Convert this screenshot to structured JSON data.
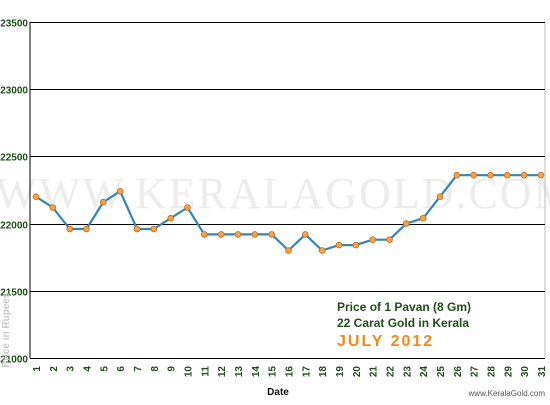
{
  "chart_data": {
    "type": "line",
    "title": "",
    "xlabel": "Date",
    "ylabel": "Price in Rupees",
    "ylim": [
      21000,
      23500
    ],
    "yticks": [
      21000,
      21500,
      22000,
      22500,
      23000,
      23500
    ],
    "grid": true,
    "x": [
      1,
      2,
      3,
      4,
      5,
      6,
      7,
      8,
      9,
      10,
      11,
      12,
      13,
      14,
      15,
      16,
      17,
      18,
      19,
      20,
      21,
      22,
      23,
      24,
      25,
      26,
      27,
      28,
      29,
      30,
      31
    ],
    "series": [
      {
        "name": "",
        "values": [
          22200,
          22120,
          21960,
          21960,
          22160,
          22240,
          21960,
          21960,
          22040,
          22120,
          21920,
          21920,
          21920,
          21920,
          21920,
          21800,
          21920,
          21800,
          21840,
          21840,
          21880,
          21880,
          22000,
          22040,
          22200,
          22360,
          22360,
          22360,
          22360,
          22360,
          22360
        ]
      }
    ],
    "annotations": {
      "line1": "Price of 1 Pavan (8 Gm)",
      "line2": "22 Carat Gold in Kerala",
      "line3": "JULY 2012"
    },
    "watermark": "WWW.KERALAGOLD.COM",
    "source": "www.KeralaGold.com"
  },
  "colors": {
    "line": "#2f86b8",
    "marker": "#f5a248",
    "marker_stroke": "#c96a10",
    "grid": "#000000",
    "tick_text": "#1f4e1a",
    "accent": "#f08a1c"
  }
}
